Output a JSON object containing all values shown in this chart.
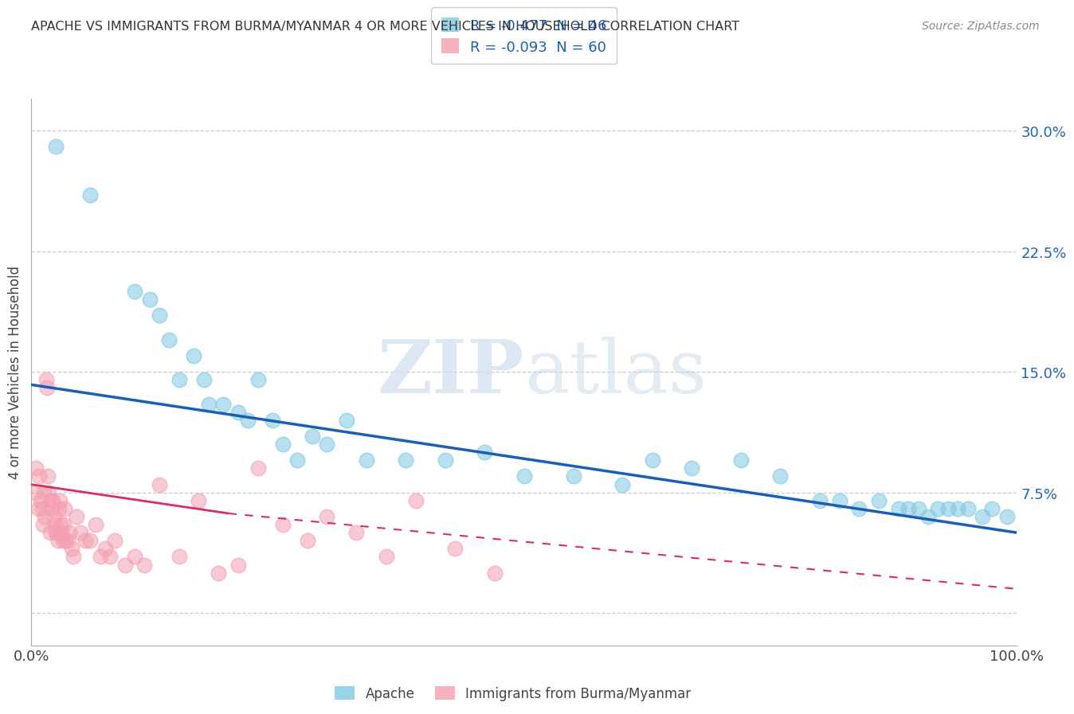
{
  "title": "APACHE VS IMMIGRANTS FROM BURMA/MYANMAR 4 OR MORE VEHICLES IN HOUSEHOLD CORRELATION CHART",
  "source": "Source: ZipAtlas.com",
  "ylabel": "4 or more Vehicles in Household",
  "xlim": [
    0,
    100
  ],
  "ylim": [
    -2,
    32
  ],
  "yticks": [
    0,
    7.5,
    15.0,
    22.5,
    30.0
  ],
  "xticks": [
    0,
    10,
    20,
    30,
    40,
    50,
    60,
    70,
    80,
    90,
    100
  ],
  "legend_apache_R": "R = -0.477",
  "legend_apache_N": "N = 46",
  "legend_burma_R": "R = -0.093",
  "legend_burma_N": "N = 60",
  "apache_color": "#7ec8e3",
  "burma_color": "#f4a0b0",
  "apache_line_color": "#1a5fb4",
  "burma_line_color": "#d63060",
  "apache_line_y0": 14.2,
  "apache_line_y100": 5.0,
  "burma_line_y0": 8.0,
  "burma_line_y20": 6.2,
  "burma_dashed_y20": 6.2,
  "burma_dashed_y100": 1.5,
  "apache_x": [
    2.5,
    6.0,
    10.5,
    12.0,
    13.0,
    14.0,
    15.0,
    16.5,
    17.5,
    18.0,
    19.5,
    21.0,
    22.0,
    23.0,
    24.5,
    25.5,
    27.0,
    28.5,
    30.0,
    32.0,
    34.0,
    38.0,
    42.0,
    46.0,
    50.0,
    55.0,
    60.0,
    63.0,
    67.0,
    72.0,
    76.0,
    80.0,
    82.0,
    84.0,
    86.0,
    88.0,
    89.0,
    90.0,
    91.0,
    92.0,
    93.0,
    94.0,
    95.0,
    96.5,
    97.5,
    99.0
  ],
  "apache_y": [
    29.0,
    26.0,
    20.0,
    19.5,
    18.5,
    17.0,
    14.5,
    16.0,
    14.5,
    13.0,
    13.0,
    12.5,
    12.0,
    14.5,
    12.0,
    10.5,
    9.5,
    11.0,
    10.5,
    12.0,
    9.5,
    9.5,
    9.5,
    10.0,
    8.5,
    8.5,
    8.0,
    9.5,
    9.0,
    9.5,
    8.5,
    7.0,
    7.0,
    6.5,
    7.0,
    6.5,
    6.5,
    6.5,
    6.0,
    6.5,
    6.5,
    6.5,
    6.5,
    6.0,
    6.5,
    6.0
  ],
  "burma_x": [
    0.3,
    0.5,
    0.7,
    0.8,
    1.0,
    1.1,
    1.2,
    1.3,
    1.4,
    1.5,
    1.6,
    1.7,
    1.8,
    1.9,
    2.0,
    2.1,
    2.2,
    2.3,
    2.4,
    2.5,
    2.6,
    2.7,
    2.8,
    2.9,
    3.0,
    3.1,
    3.2,
    3.3,
    3.4,
    3.5,
    3.7,
    3.9,
    4.1,
    4.3,
    4.6,
    5.0,
    5.5,
    6.0,
    6.5,
    7.0,
    7.5,
    8.0,
    8.5,
    9.5,
    10.5,
    11.5,
    13.0,
    15.0,
    17.0,
    19.0,
    21.0,
    23.0,
    25.5,
    28.0,
    30.0,
    33.0,
    36.0,
    39.0,
    43.0,
    47.0
  ],
  "burma_y": [
    7.5,
    9.0,
    6.5,
    8.5,
    7.0,
    6.5,
    5.5,
    7.5,
    6.0,
    14.5,
    14.0,
    8.5,
    7.5,
    5.0,
    7.0,
    6.5,
    7.0,
    6.0,
    5.5,
    5.0,
    5.0,
    4.5,
    6.5,
    7.0,
    5.5,
    5.0,
    4.5,
    5.5,
    6.5,
    4.5,
    4.5,
    5.0,
    4.0,
    3.5,
    6.0,
    5.0,
    4.5,
    4.5,
    5.5,
    3.5,
    4.0,
    3.5,
    4.5,
    3.0,
    3.5,
    3.0,
    8.0,
    3.5,
    7.0,
    2.5,
    3.0,
    9.0,
    5.5,
    4.5,
    6.0,
    5.0,
    3.5,
    7.0,
    4.0,
    2.5
  ]
}
